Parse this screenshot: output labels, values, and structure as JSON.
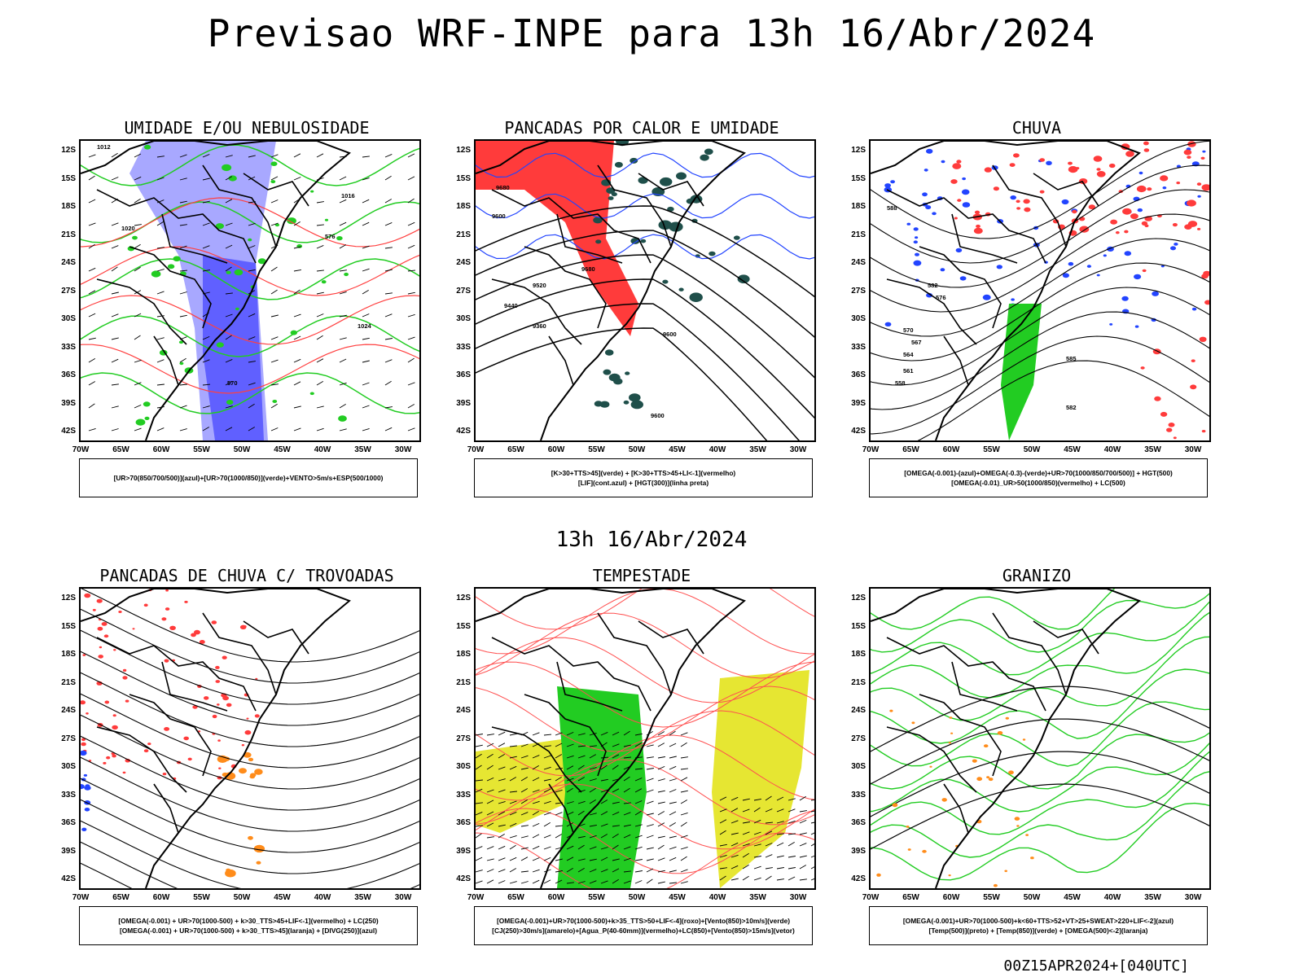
{
  "title": "Previsao WRF-INPE  para 13h 16/Abr/2024",
  "mid_title": "13h 16/Abr/2024",
  "footer": "00Z15APR2024+[040UTC]",
  "lat_labels": [
    "12S",
    "15S",
    "18S",
    "21S",
    "24S",
    "27S",
    "30S",
    "33S",
    "36S",
    "39S",
    "42S"
  ],
  "lon_labels": [
    "70W",
    "65W",
    "60W",
    "55W",
    "50W",
    "45W",
    "40W",
    "35W",
    "30W"
  ],
  "colors": {
    "red": "#ff3b3b",
    "green": "#22cc22",
    "blue": "#2244ff",
    "lavender": "#a8a8ff",
    "dark_teal": "#1f4f4a",
    "yellow": "#e6e632",
    "orange": "#ff8c1a"
  },
  "panels": [
    {
      "title": "UMIDADE E/OU NEBULOSIDADE",
      "legend": [
        "[UR>70(850/700/500)](azul)+[UR>70(1000/850)](verde)+VENTO>5m/s+ESP(500/1000)"
      ],
      "contour_labels": [
        "1012",
        "1016",
        "1020",
        "1024",
        "570",
        "576"
      ]
    },
    {
      "title": "PANCADAS POR CALOR E UMIDADE",
      "legend": [
        "[K>30+TTS>45](verde) + [K>30+TTS>45+LI<-1](vermelho)",
        "[LIF](cont.azul) + [HGT(300)](linha preta)"
      ],
      "contour_labels": [
        "9680",
        "9600",
        "9520",
        "9440",
        "9360",
        "9600",
        "9680",
        "9600"
      ]
    },
    {
      "title": "CHUVA",
      "legend": [
        "[OMEGA(-0.001)-(azul)+OMEGA(-0.3)-(verde)+UR>70(1000/850/700/500)] + HGT(500)",
        "[OMEGA(-0.01)_UR>50(1000/850)(vermelho) + LC(500)"
      ],
      "contour_labels": [
        "588",
        "582",
        "576",
        "570",
        "567",
        "564",
        "561",
        "558",
        "585",
        "582"
      ]
    },
    {
      "title": "PANCADAS DE CHUVA C/ TROVOADAS",
      "legend": [
        "[OMEGA(-0.001) + UR>70(1000-500) + k>30_TTS>45+LIF<-1](vermelho) + LC(250)",
        "[OMEGA(-0.001) + UR>70(1000-500) + k>30_TTS>45](laranja) + [DIVG(250)](azul)"
      ],
      "contour_labels": []
    },
    {
      "title": "TEMPESTADE",
      "legend": [
        "[OMEGA(-0.001)+UR>70(1000-500)+k>35_TTS>50+LIF<-4](roxo)+[Vento(850)>10m/s](verde)",
        "[CJ(250)>30m/s](amarelo)+[Agua_P(40-60mm)](vermelho)+LC(850)+[Vento(850)>15m/s](vetor)"
      ],
      "contour_labels": []
    },
    {
      "title": "GRANIZO",
      "legend": [
        "[OMEGA(-0.001)+UR>70(1000-500)+k<60+TTS>52+VT>25+SWEAT>220+LIF<-2](azul)",
        "[Temp(500)](preto) + [Temp(850)](verde) + [OMEGA(500)<-2](laranja)"
      ],
      "contour_labels": []
    }
  ]
}
